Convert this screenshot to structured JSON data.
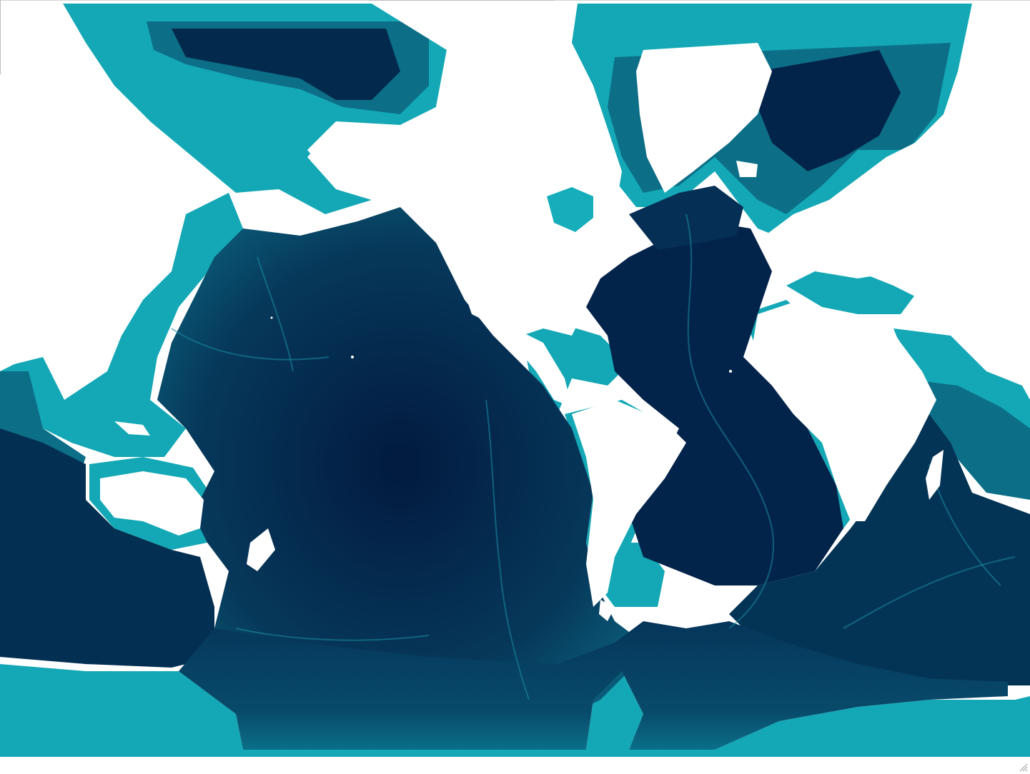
{
  "map": {
    "colors": {
      "land": "#ffffff",
      "deep_ocean": "#02193d",
      "mid_ocean": "#07405f",
      "slope": "#0c6f87",
      "shelf": "#14a8b6",
      "shallow": "#18b7c3"
    },
    "layer": "ocean-bathymetry"
  },
  "window": {
    "resize_grip_icon": "resize-grip-icon"
  }
}
